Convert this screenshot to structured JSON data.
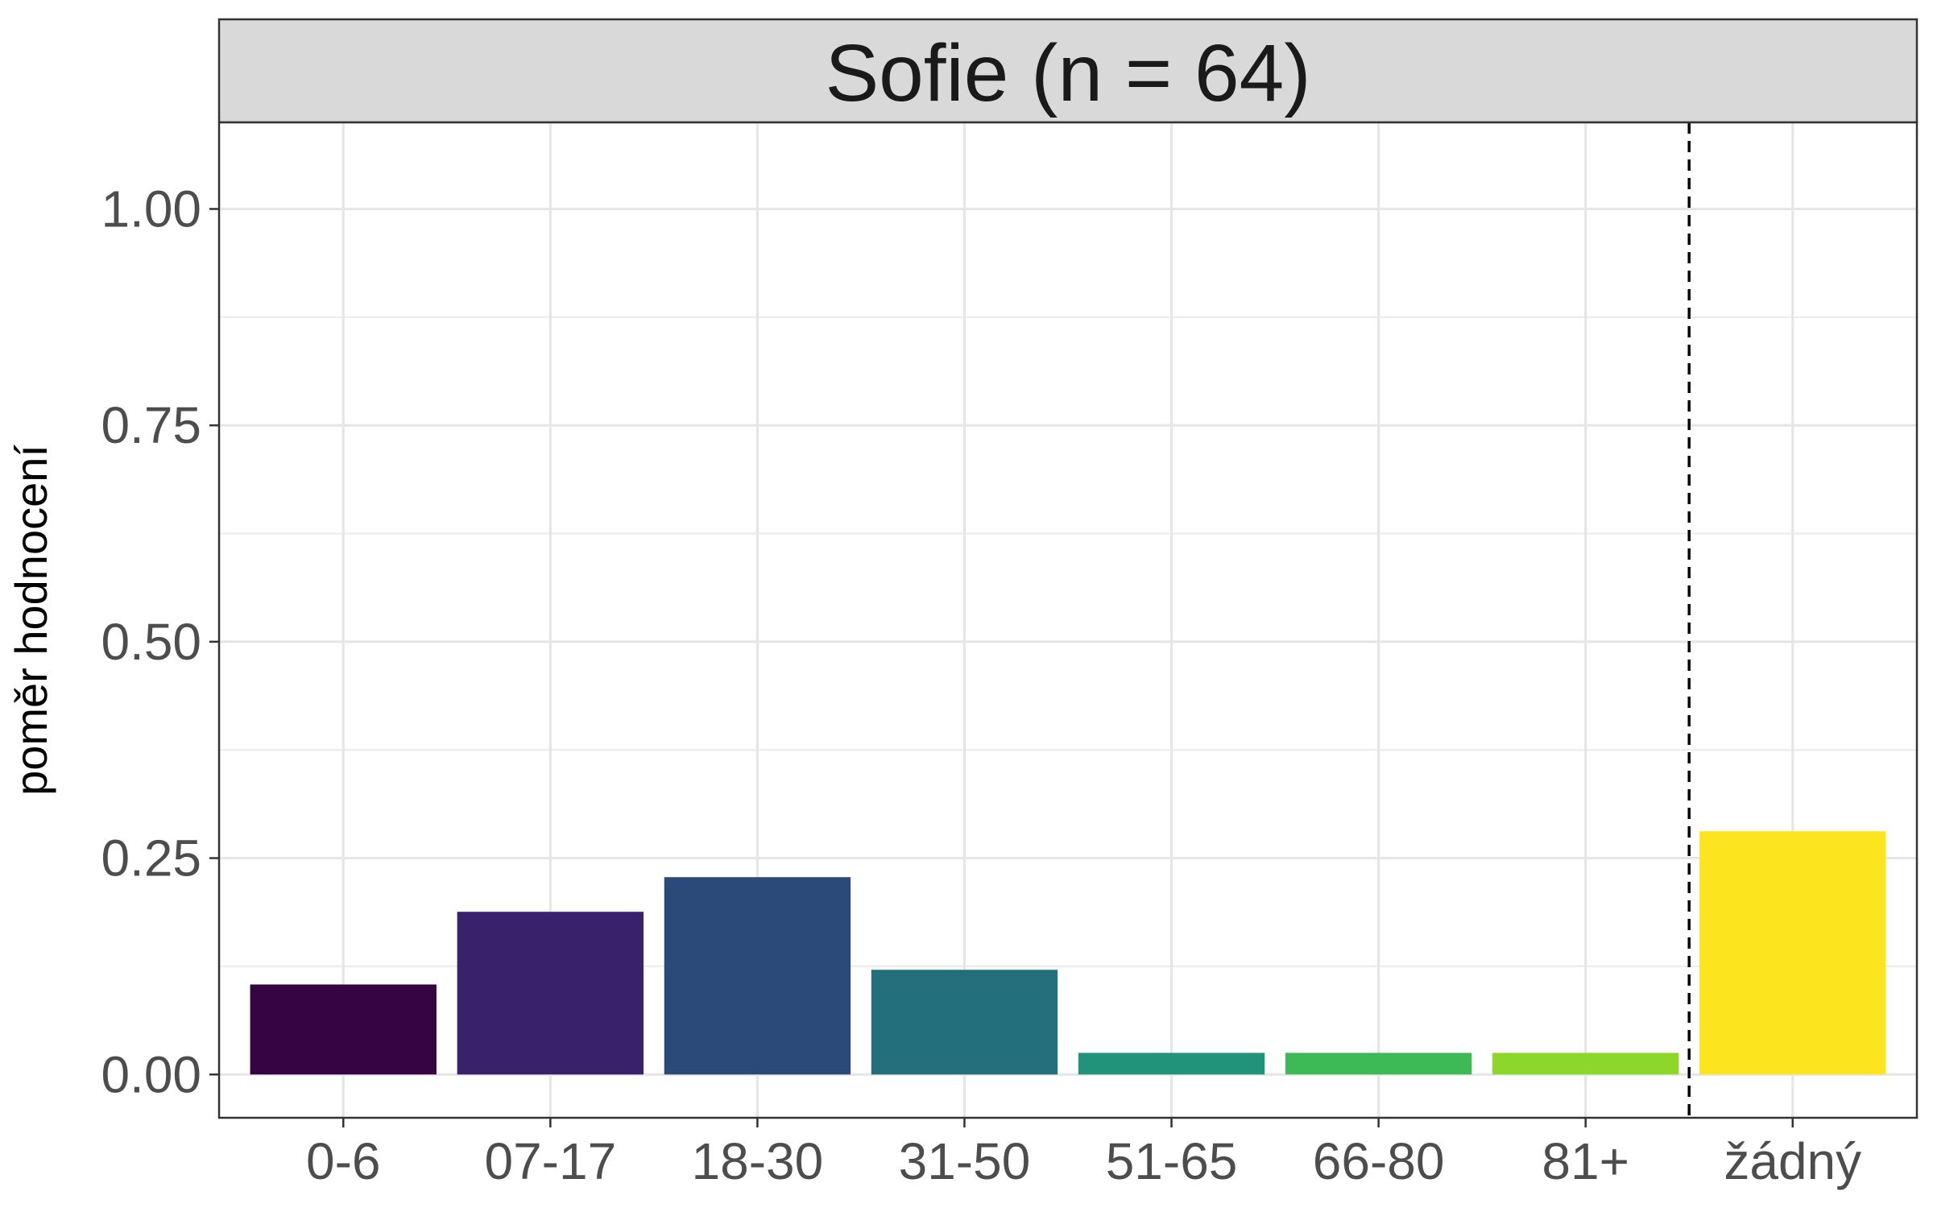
{
  "chart_data": {
    "type": "bar",
    "title": "Sofie (n = 64)",
    "xlabel": "",
    "ylabel": "poměr hodnocení",
    "ylim": [
      -0.05,
      1.1
    ],
    "yticks": [
      0.0,
      0.25,
      0.5,
      0.75,
      1.0
    ],
    "ytick_labels": [
      "0.00",
      "0.25",
      "0.50",
      "0.75",
      "1.00"
    ],
    "categories": [
      "0-6",
      "07-17",
      "18-30",
      "31-50",
      "51-65",
      "66-80",
      "81+",
      "žádný"
    ],
    "values": [
      0.104,
      0.188,
      0.228,
      0.121,
      0.025,
      0.025,
      0.025,
      0.281
    ],
    "colors": [
      "#350441",
      "#39226b",
      "#2c4a79",
      "#236f7b",
      "#21937a",
      "#3dba55",
      "#8fd62b",
      "#fce51f"
    ],
    "separator_between": [
      "81+",
      "žádný"
    ],
    "grid": true,
    "legend": "none"
  }
}
